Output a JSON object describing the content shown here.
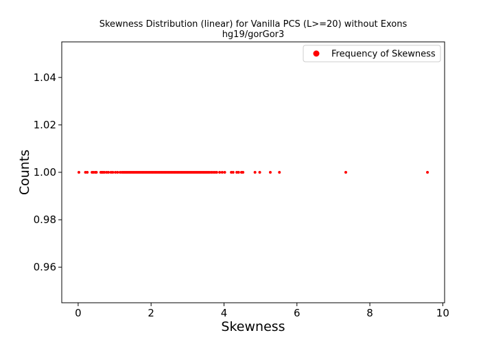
{
  "chart_data": {
    "type": "scatter",
    "title": "Skewness Distribution (linear) for Vanilla PCS (L>=20) without Exons",
    "subtitle": "hg19/gorGor3",
    "xlabel": "Skewness",
    "ylabel": "Counts",
    "xlim": [
      -0.45,
      10.05
    ],
    "ylim": [
      0.945,
      1.055
    ],
    "xticks": [
      0,
      2,
      4,
      6,
      8,
      10
    ],
    "xtick_labels": [
      "0",
      "2",
      "4",
      "6",
      "8",
      "10"
    ],
    "yticks": [
      0.96,
      0.98,
      1.0,
      1.02,
      1.04
    ],
    "ytick_labels": [
      "0.96",
      "0.98",
      "1.00",
      "1.02",
      "1.04"
    ],
    "grid": false,
    "legend_position": "top-right",
    "marker_color": "#ff0000",
    "series": [
      {
        "name": "Frequency of Skewness",
        "points": [
          {
            "x": 0.02,
            "y": 1.0
          },
          {
            "x": 0.2,
            "y": 1.0
          },
          {
            "x": 0.25,
            "y": 1.0
          },
          {
            "x": 0.38,
            "y": 1.0
          },
          {
            "x": 0.42,
            "y": 1.0
          },
          {
            "x": 0.47,
            "y": 1.0
          },
          {
            "x": 0.5,
            "y": 1.0
          },
          {
            "x": 0.62,
            "y": 1.0
          },
          {
            "x": 0.65,
            "y": 1.0
          },
          {
            "x": 0.68,
            "y": 1.0
          },
          {
            "x": 0.72,
            "y": 1.0
          },
          {
            "x": 0.78,
            "y": 1.0
          },
          {
            "x": 0.83,
            "y": 1.0
          },
          {
            "x": 0.9,
            "y": 1.0
          },
          {
            "x": 0.95,
            "y": 1.0
          },
          {
            "x": 1.02,
            "y": 1.0
          },
          {
            "x": 1.08,
            "y": 1.0
          },
          {
            "x": 1.15,
            "y": 1.0
          },
          {
            "x": 1.2,
            "y": 1.0
          },
          {
            "x": 1.24,
            "y": 1.0
          },
          {
            "x": 1.28,
            "y": 1.0
          },
          {
            "x": 1.32,
            "y": 1.0
          },
          {
            "x": 1.36,
            "y": 1.0
          },
          {
            "x": 1.4,
            "y": 1.0
          },
          {
            "x": 1.44,
            "y": 1.0
          },
          {
            "x": 1.48,
            "y": 1.0
          },
          {
            "x": 1.52,
            "y": 1.0
          },
          {
            "x": 1.56,
            "y": 1.0
          },
          {
            "x": 1.6,
            "y": 1.0
          },
          {
            "x": 1.64,
            "y": 1.0
          },
          {
            "x": 1.68,
            "y": 1.0
          },
          {
            "x": 1.72,
            "y": 1.0
          },
          {
            "x": 1.76,
            "y": 1.0
          },
          {
            "x": 1.8,
            "y": 1.0
          },
          {
            "x": 1.84,
            "y": 1.0
          },
          {
            "x": 1.88,
            "y": 1.0
          },
          {
            "x": 1.92,
            "y": 1.0
          },
          {
            "x": 1.96,
            "y": 1.0
          },
          {
            "x": 2.0,
            "y": 1.0
          },
          {
            "x": 2.04,
            "y": 1.0
          },
          {
            "x": 2.08,
            "y": 1.0
          },
          {
            "x": 2.12,
            "y": 1.0
          },
          {
            "x": 2.16,
            "y": 1.0
          },
          {
            "x": 2.2,
            "y": 1.0
          },
          {
            "x": 2.24,
            "y": 1.0
          },
          {
            "x": 2.28,
            "y": 1.0
          },
          {
            "x": 2.32,
            "y": 1.0
          },
          {
            "x": 2.36,
            "y": 1.0
          },
          {
            "x": 2.4,
            "y": 1.0
          },
          {
            "x": 2.44,
            "y": 1.0
          },
          {
            "x": 2.48,
            "y": 1.0
          },
          {
            "x": 2.52,
            "y": 1.0
          },
          {
            "x": 2.56,
            "y": 1.0
          },
          {
            "x": 2.6,
            "y": 1.0
          },
          {
            "x": 2.64,
            "y": 1.0
          },
          {
            "x": 2.68,
            "y": 1.0
          },
          {
            "x": 2.72,
            "y": 1.0
          },
          {
            "x": 2.76,
            "y": 1.0
          },
          {
            "x": 2.8,
            "y": 1.0
          },
          {
            "x": 2.84,
            "y": 1.0
          },
          {
            "x": 2.88,
            "y": 1.0
          },
          {
            "x": 2.92,
            "y": 1.0
          },
          {
            "x": 2.96,
            "y": 1.0
          },
          {
            "x": 3.0,
            "y": 1.0
          },
          {
            "x": 3.04,
            "y": 1.0
          },
          {
            "x": 3.08,
            "y": 1.0
          },
          {
            "x": 3.12,
            "y": 1.0
          },
          {
            "x": 3.16,
            "y": 1.0
          },
          {
            "x": 3.2,
            "y": 1.0
          },
          {
            "x": 3.24,
            "y": 1.0
          },
          {
            "x": 3.28,
            "y": 1.0
          },
          {
            "x": 3.32,
            "y": 1.0
          },
          {
            "x": 3.36,
            "y": 1.0
          },
          {
            "x": 3.4,
            "y": 1.0
          },
          {
            "x": 3.44,
            "y": 1.0
          },
          {
            "x": 3.48,
            "y": 1.0
          },
          {
            "x": 3.52,
            "y": 1.0
          },
          {
            "x": 3.56,
            "y": 1.0
          },
          {
            "x": 3.6,
            "y": 1.0
          },
          {
            "x": 3.65,
            "y": 1.0
          },
          {
            "x": 3.7,
            "y": 1.0
          },
          {
            "x": 3.75,
            "y": 1.0
          },
          {
            "x": 3.8,
            "y": 1.0
          },
          {
            "x": 3.88,
            "y": 1.0
          },
          {
            "x": 3.95,
            "y": 1.0
          },
          {
            "x": 4.02,
            "y": 1.0
          },
          {
            "x": 4.2,
            "y": 1.0
          },
          {
            "x": 4.25,
            "y": 1.0
          },
          {
            "x": 4.35,
            "y": 1.0
          },
          {
            "x": 4.4,
            "y": 1.0
          },
          {
            "x": 4.48,
            "y": 1.0
          },
          {
            "x": 4.52,
            "y": 1.0
          },
          {
            "x": 4.85,
            "y": 1.0
          },
          {
            "x": 4.98,
            "y": 1.0
          },
          {
            "x": 5.27,
            "y": 1.0
          },
          {
            "x": 5.52,
            "y": 1.0
          },
          {
            "x": 7.34,
            "y": 1.0
          },
          {
            "x": 9.58,
            "y": 1.0
          }
        ]
      }
    ]
  }
}
